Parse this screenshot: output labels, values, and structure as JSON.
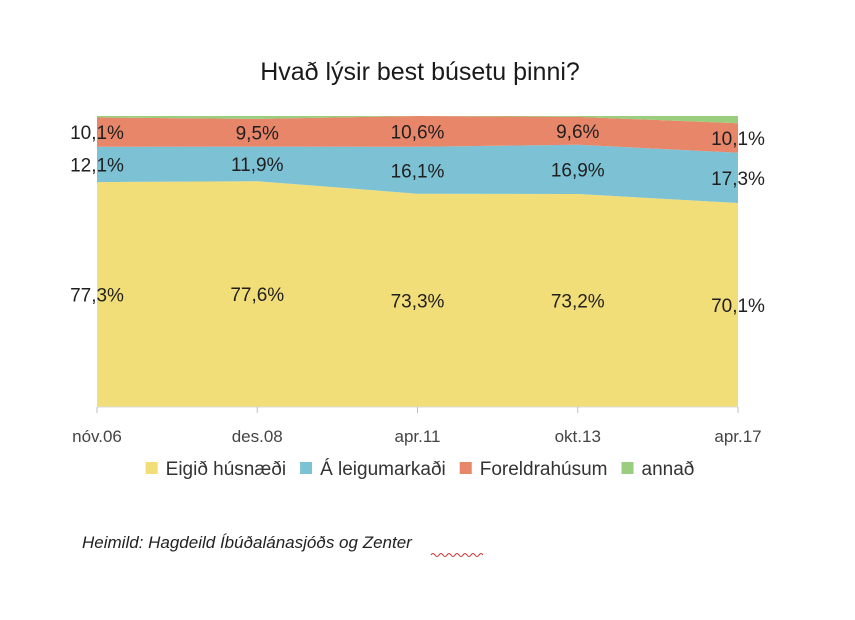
{
  "chart_data": {
    "type": "area",
    "stacked": true,
    "percent_stacked": true,
    "title": "Hvað lýsir best búsetu þinni?",
    "categories": [
      "nóv.06",
      "des.08",
      "apr.11",
      "okt.13",
      "apr.17"
    ],
    "ylim": [
      0,
      100
    ],
    "grid": false,
    "legend_position": "bottom",
    "series": [
      {
        "name": "Eigið húsnæði",
        "values": [
          77.3,
          77.6,
          73.3,
          73.2,
          70.1
        ],
        "labels": [
          "77,3%",
          "77,6%",
          "73,3%",
          "73,2%",
          "70,1%"
        ],
        "color": "#f2de79"
      },
      {
        "name": "Á leigumarkaði",
        "values": [
          12.1,
          11.9,
          16.1,
          16.9,
          17.3
        ],
        "labels": [
          "12,1%",
          "11,9%",
          "16,1%",
          "16,9%",
          "17,3%"
        ],
        "color": "#7cc1d4"
      },
      {
        "name": "Foreldrahúsum",
        "values": [
          10.1,
          9.5,
          10.6,
          9.6,
          10.1
        ],
        "labels": [
          "10,1%",
          "9,5%",
          "10,6%",
          "9,6%",
          "10,1%"
        ],
        "color": "#e8866a"
      },
      {
        "name": "annað",
        "values": [
          0.5,
          1.0,
          0.0,
          0.3,
          2.5
        ],
        "labels": [],
        "color": "#9acd7e"
      }
    ]
  },
  "source_prefix": "Heimild: Hagdeild Íbúðalánasjóðs og ",
  "source_suffix": "Zenter"
}
